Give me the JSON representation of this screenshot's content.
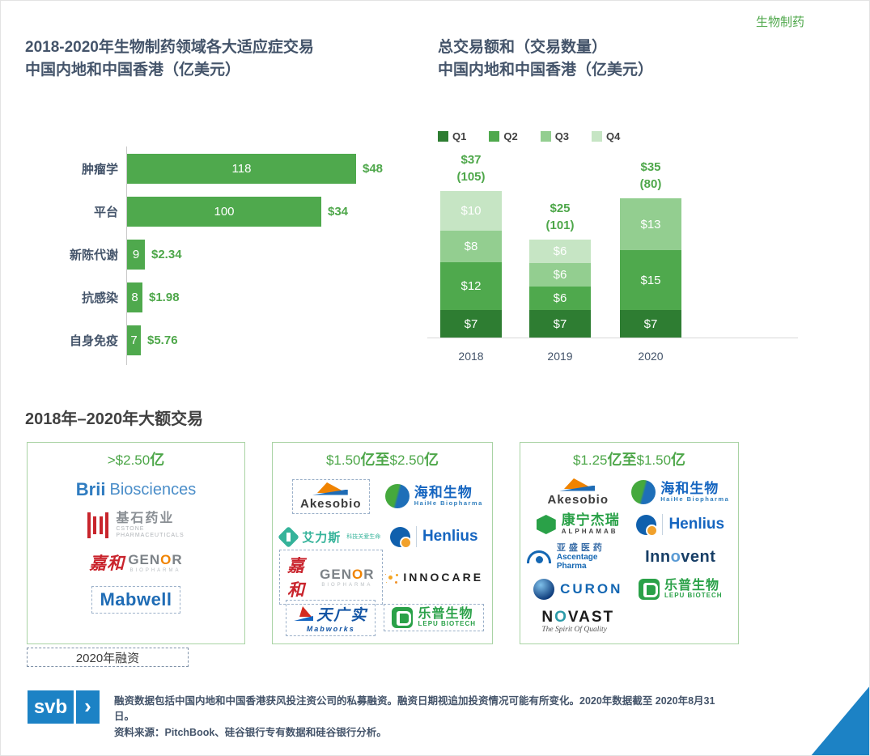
{
  "page": {
    "corner_tag": "生物制药",
    "accent_green": "#4EA74A",
    "title_color": "#44546A",
    "svb_blue": "#1C82C5"
  },
  "titles": {
    "left_line1_num": "2018-2020",
    "left_line1_cn": "年生物制药领域各大适应症交易",
    "left_line2": "中国内地和中国香港（亿美元）",
    "right_line1": "总交易额和（交易数量）",
    "right_line2": "中国内地和中国香港（亿美元）"
  },
  "deals_section": {
    "title_p1": "2018",
    "title_p2": "年",
    "title_p3": "–2020",
    "title_p4": "年大额交易",
    "legend_label": "2020年融资",
    "box1_header_num": ">$2.50",
    "box1_header_cn": "亿",
    "box2_header_n1": "$1.50",
    "box2_header_c1": "亿至",
    "box2_header_n2": "$2.50",
    "box2_header_c2": "亿",
    "box3_header_n1": "$1.25",
    "box3_header_c1": "亿至",
    "box3_header_n2": "$1.50",
    "box3_header_c2": "亿"
  },
  "logos": {
    "brii": {
      "wordmark": "Brii",
      "suffix": "Biosciences"
    },
    "cstone": {
      "cn": "基石药业",
      "en1": "CSTONE",
      "en2": "PHARMACEUTICALS"
    },
    "genor": {
      "cn": "嘉和",
      "en_p1": "GEN",
      "en_o": "O",
      "en_p2": "R",
      "sub": "BIOPHARMA"
    },
    "mabwell": {
      "wordmark": "Mabwell"
    },
    "akesobio": {
      "wordmark": "Akesobio"
    },
    "haihe": {
      "cn": "海和生物",
      "en": "HaiHe Biopharma"
    },
    "allist": {
      "cn": "艾力斯",
      "tag": "科技关爱生命"
    },
    "henlius": {
      "wordmark": "Henlius"
    },
    "innocare": {
      "wordmark": "INNOCARE"
    },
    "mabworks": {
      "cn": "天广实",
      "en": "Mabworks"
    },
    "lepu": {
      "cn": "乐普生物",
      "en": "LEPU BIOTECH"
    },
    "alphamab": {
      "cn": "康宁杰瑞",
      "en": "ALPHAMAB"
    },
    "ascentage": {
      "cn": "亚盛医药",
      "en": "Ascentage Pharma"
    },
    "innovent": {
      "p1": "Inn",
      "o": "o",
      "p2": "vent"
    },
    "curon": {
      "wordmark": "CURON"
    },
    "novast": {
      "n": "N",
      "o": "O",
      "vast": "VAST",
      "tag": "The Spirit Of Quality"
    }
  },
  "footer": {
    "logo_text": "svb",
    "logo_chevron": "›",
    "note": "融资数据包括中国内地和中国香港获风投注资公司的私募融资。融资日期视追加投资情况可能有所变化。2020年数据截至 2020年8月31日。",
    "source": "资料来源：PitchBook、硅谷银行专有数据和硅谷银行分析。"
  },
  "chart_data": [
    {
      "type": "bar",
      "orientation": "horizontal",
      "title": "2018-2020年生物制药领域各大适应症交易 中国内地和中国香港（亿美元）",
      "categories": [
        "肿瘤学",
        "平台",
        "新陈代谢",
        "抗感染",
        "自身免疫"
      ],
      "values": [
        118,
        100,
        9,
        8,
        7
      ],
      "bar_value_meaning": "交易数量",
      "amount_labels": [
        "$48",
        "$34",
        "$2.34",
        "$1.98",
        "$5.76"
      ],
      "bar_color": "#4FA94D",
      "xlim": [
        0,
        125
      ],
      "grid": false
    },
    {
      "type": "bar",
      "stacked": true,
      "title": "总交易额和（交易数量） 中国内地和中国香港（亿美元）",
      "categories": [
        "2018",
        "2019",
        "2020"
      ],
      "series": [
        {
          "name": "Q1",
          "values": [
            7,
            7,
            7
          ]
        },
        {
          "name": "Q2",
          "values": [
            12,
            6,
            15
          ]
        },
        {
          "name": "Q3",
          "values": [
            8,
            6,
            13
          ]
        },
        {
          "name": "Q4",
          "values": [
            10,
            6,
            0
          ]
        }
      ],
      "totals": [
        "$37",
        "$25",
        "$35"
      ],
      "deal_counts": [
        "(105)",
        "(101)",
        "(80)"
      ],
      "colors": {
        "Q1": "#2E7D32",
        "Q2": "#4FA94D",
        "Q3": "#93CE90",
        "Q4": "#C6E5C4"
      },
      "legend_position": "top",
      "ylim": [
        0,
        40
      ],
      "grid": false
    }
  ]
}
